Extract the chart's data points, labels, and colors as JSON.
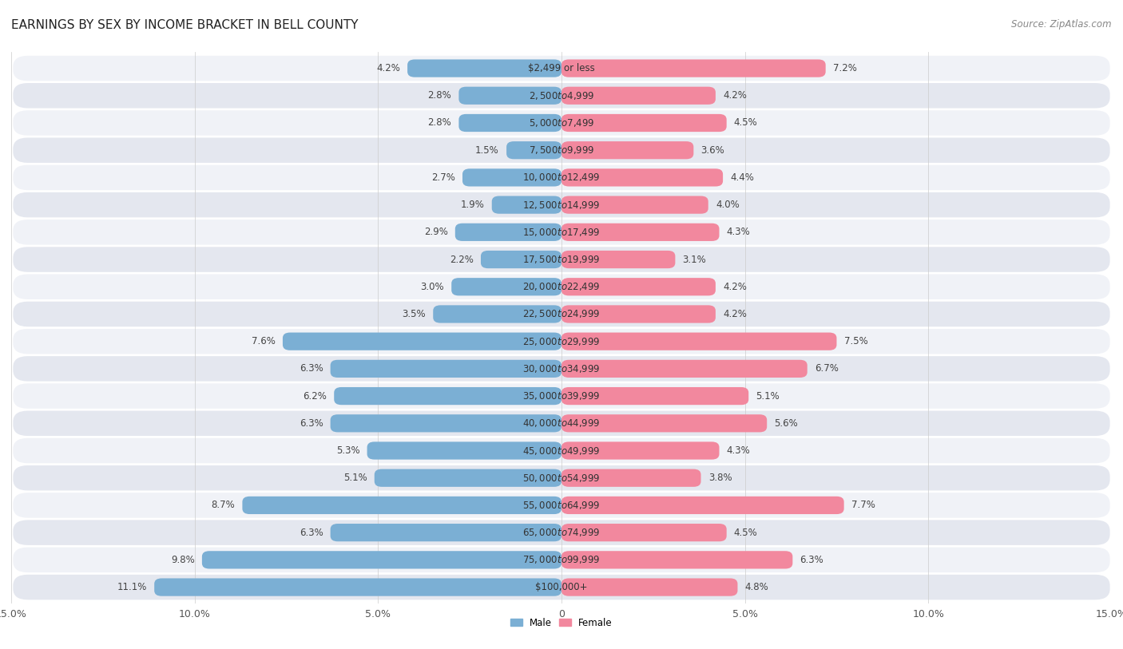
{
  "title": "EARNINGS BY SEX BY INCOME BRACKET IN BELL COUNTY",
  "source": "Source: ZipAtlas.com",
  "categories": [
    "$2,499 or less",
    "$2,500 to $4,999",
    "$5,000 to $7,499",
    "$7,500 to $9,999",
    "$10,000 to $12,499",
    "$12,500 to $14,999",
    "$15,000 to $17,499",
    "$17,500 to $19,999",
    "$20,000 to $22,499",
    "$22,500 to $24,999",
    "$25,000 to $29,999",
    "$30,000 to $34,999",
    "$35,000 to $39,999",
    "$40,000 to $44,999",
    "$45,000 to $49,999",
    "$50,000 to $54,999",
    "$55,000 to $64,999",
    "$65,000 to $74,999",
    "$75,000 to $99,999",
    "$100,000+"
  ],
  "male_values": [
    4.2,
    2.8,
    2.8,
    1.5,
    2.7,
    1.9,
    2.9,
    2.2,
    3.0,
    3.5,
    7.6,
    6.3,
    6.2,
    6.3,
    5.3,
    5.1,
    8.7,
    6.3,
    9.8,
    11.1
  ],
  "female_values": [
    7.2,
    4.2,
    4.5,
    3.6,
    4.4,
    4.0,
    4.3,
    3.1,
    4.2,
    4.2,
    7.5,
    6.7,
    5.1,
    5.6,
    4.3,
    3.8,
    7.7,
    4.5,
    6.3,
    4.8
  ],
  "male_color": "#7BAFD4",
  "female_color": "#F2889E",
  "male_label": "Male",
  "female_label": "Female",
  "xlim": 15.0,
  "bar_height": 0.65,
  "bg_color": "#ffffff",
  "row_bg_light": "#f0f2f7",
  "row_bg_dark": "#e4e7ef",
  "title_fontsize": 11,
  "label_fontsize": 8.5,
  "axis_fontsize": 9,
  "source_fontsize": 8.5,
  "value_fontsize": 8.5
}
